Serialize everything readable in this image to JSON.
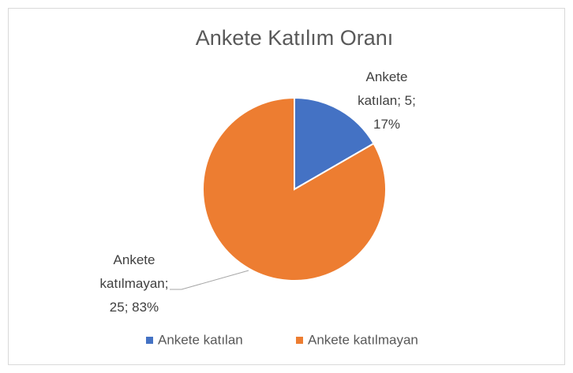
{
  "chart_data": {
    "type": "pie",
    "title": "Ankete Katılım Oranı",
    "categories": [
      "Ankete katılan",
      "Ankete katılmayan"
    ],
    "values": [
      5,
      25
    ],
    "value_labels": [
      "Ankete katılan; 5; 17%",
      "Ankete katılmayan; 25; 83%"
    ],
    "colors": [
      "#4472c4",
      "#ed7d31"
    ],
    "legend": "bottom"
  }
}
